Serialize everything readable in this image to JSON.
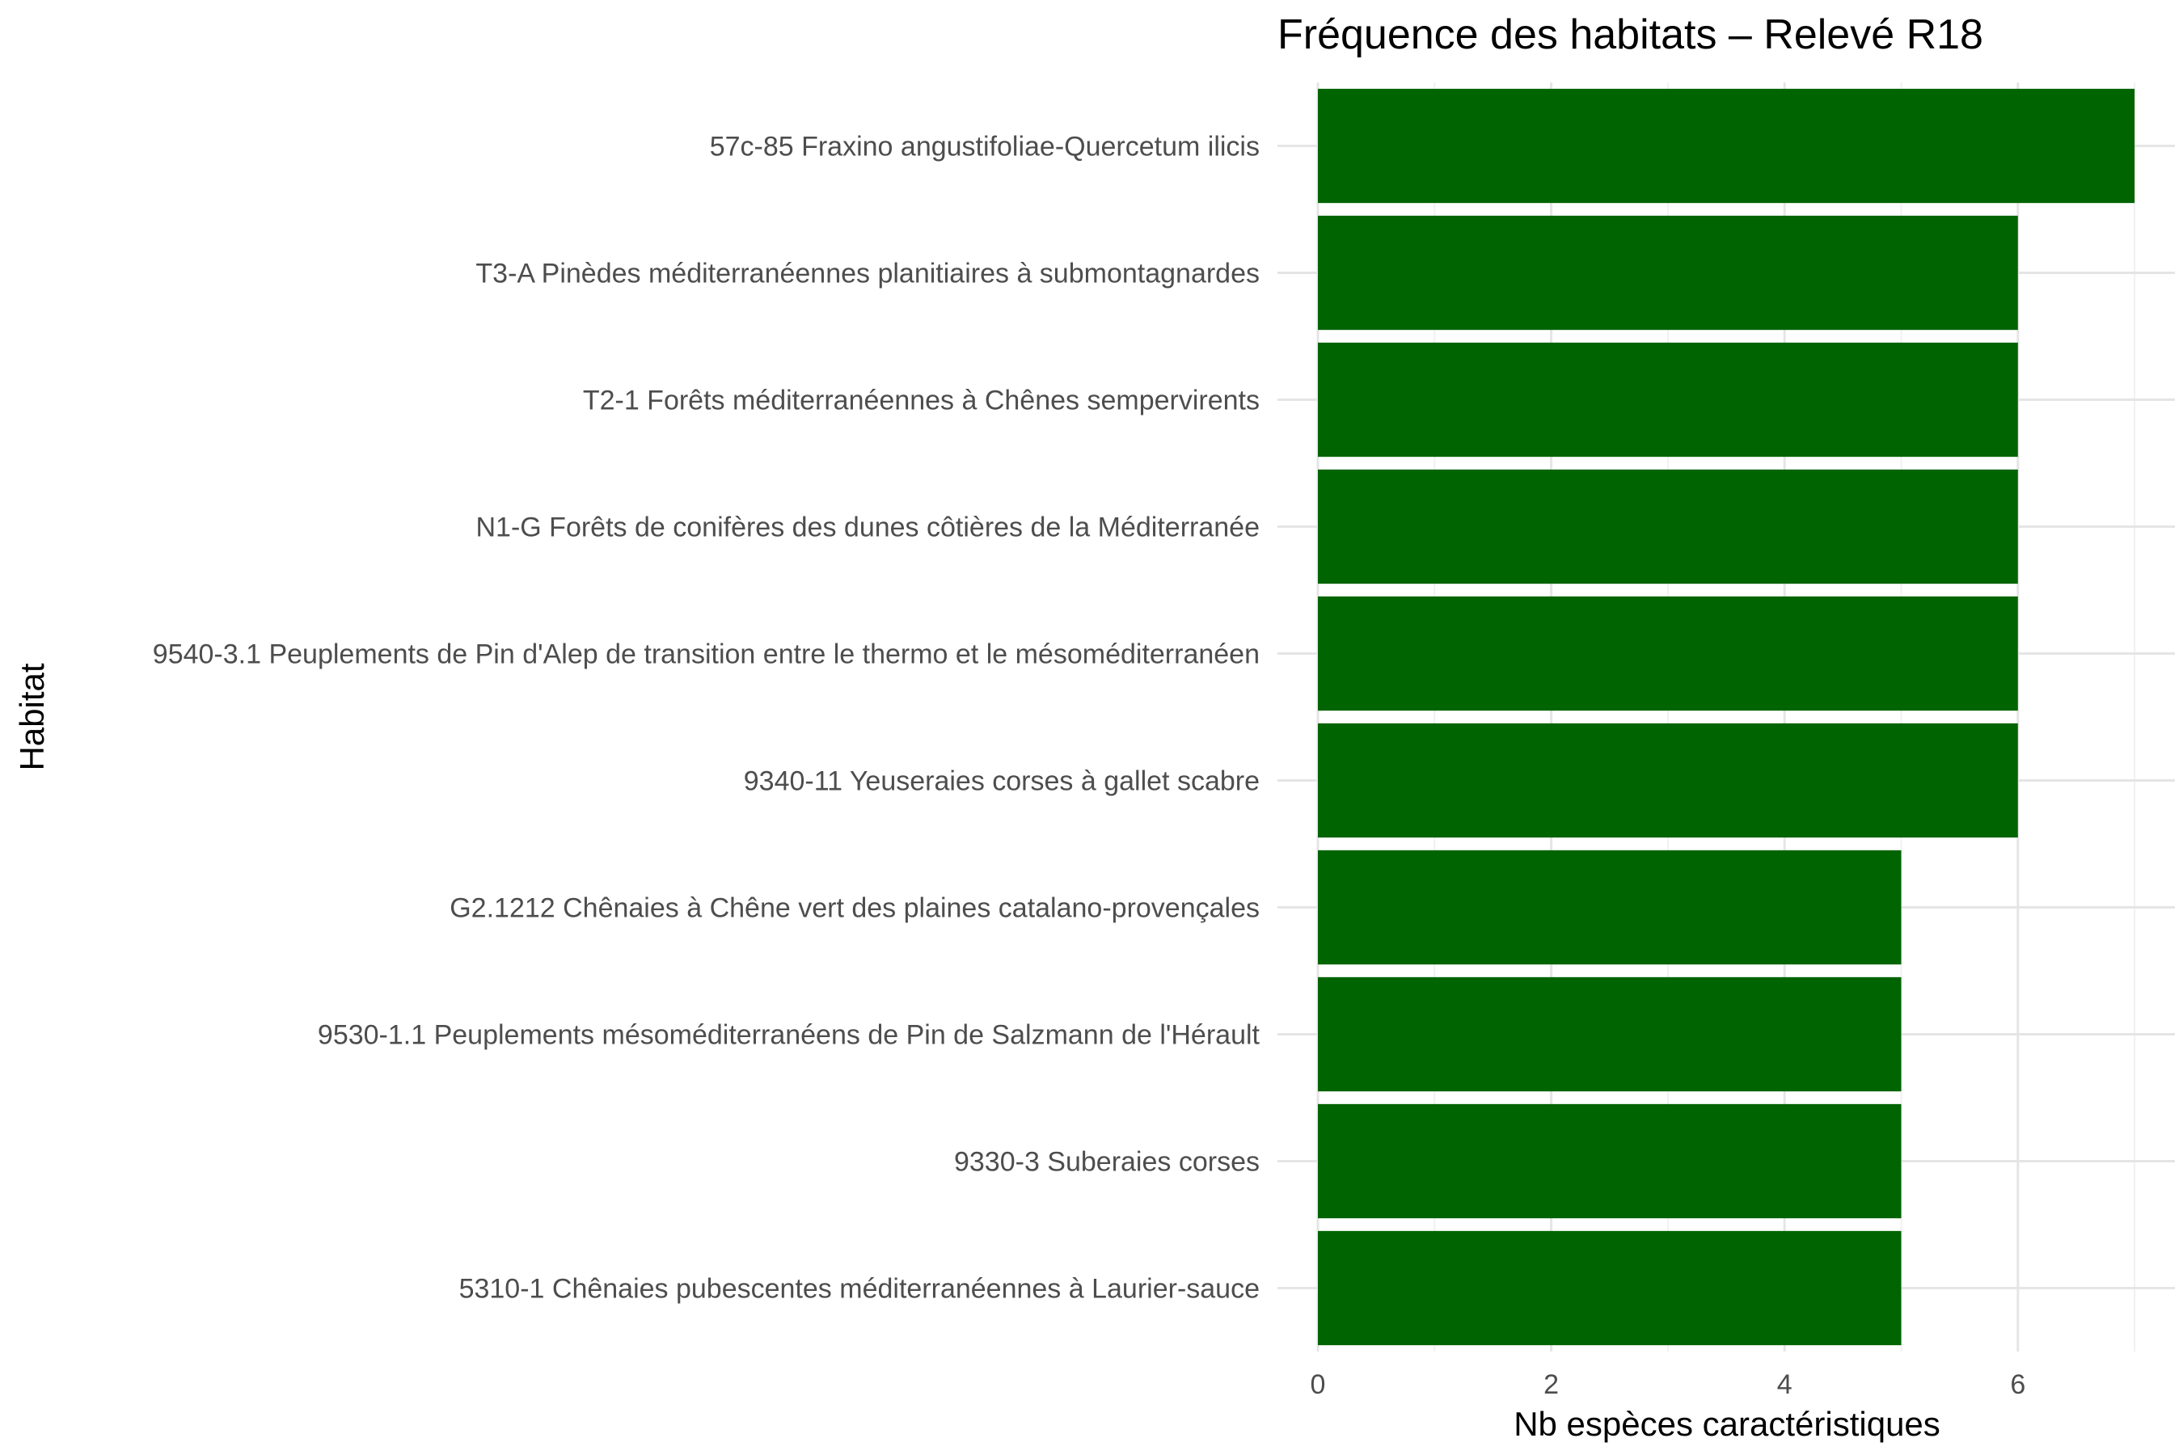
{
  "chart_data": {
    "type": "bar",
    "orientation": "horizontal",
    "title": "Fréquence des habitats – Relevé R18",
    "xlabel": "Nb espèces caractéristiques",
    "ylabel": "Habitat",
    "xlim": [
      0,
      7.35
    ],
    "xticks": [
      0,
      2,
      4,
      6
    ],
    "grid": true,
    "bar_color": "#006400",
    "categories": [
      "57c-85 Fraxino angustifoliae-Quercetum ilicis",
      "T3-A Pinèdes méditerranéennes planitiaires à submontagnardes",
      "T2-1 Forêts méditerranéennes à Chênes sempervirents",
      "N1-G Forêts de conifères des dunes côtières de la Méditerranée",
      "9540-3.1 Peuplements de Pin d'Alep de transition entre le thermo et le mésoméditerranéen",
      "9340-11 Yeuseraies corses à gallet scabre",
      "G2.1212 Chênaies à Chêne vert des plaines catalano-provençales",
      "9530-1.1 Peuplements mésoméditerranéens de Pin de Salzmann de l'Hérault",
      "9330-3 Suberaies corses",
      "5310-1 Chênaies pubescentes méditerranéennes à Laurier-sauce"
    ],
    "values": [
      7,
      6,
      6,
      6,
      6,
      6,
      5,
      5,
      5,
      5
    ]
  }
}
